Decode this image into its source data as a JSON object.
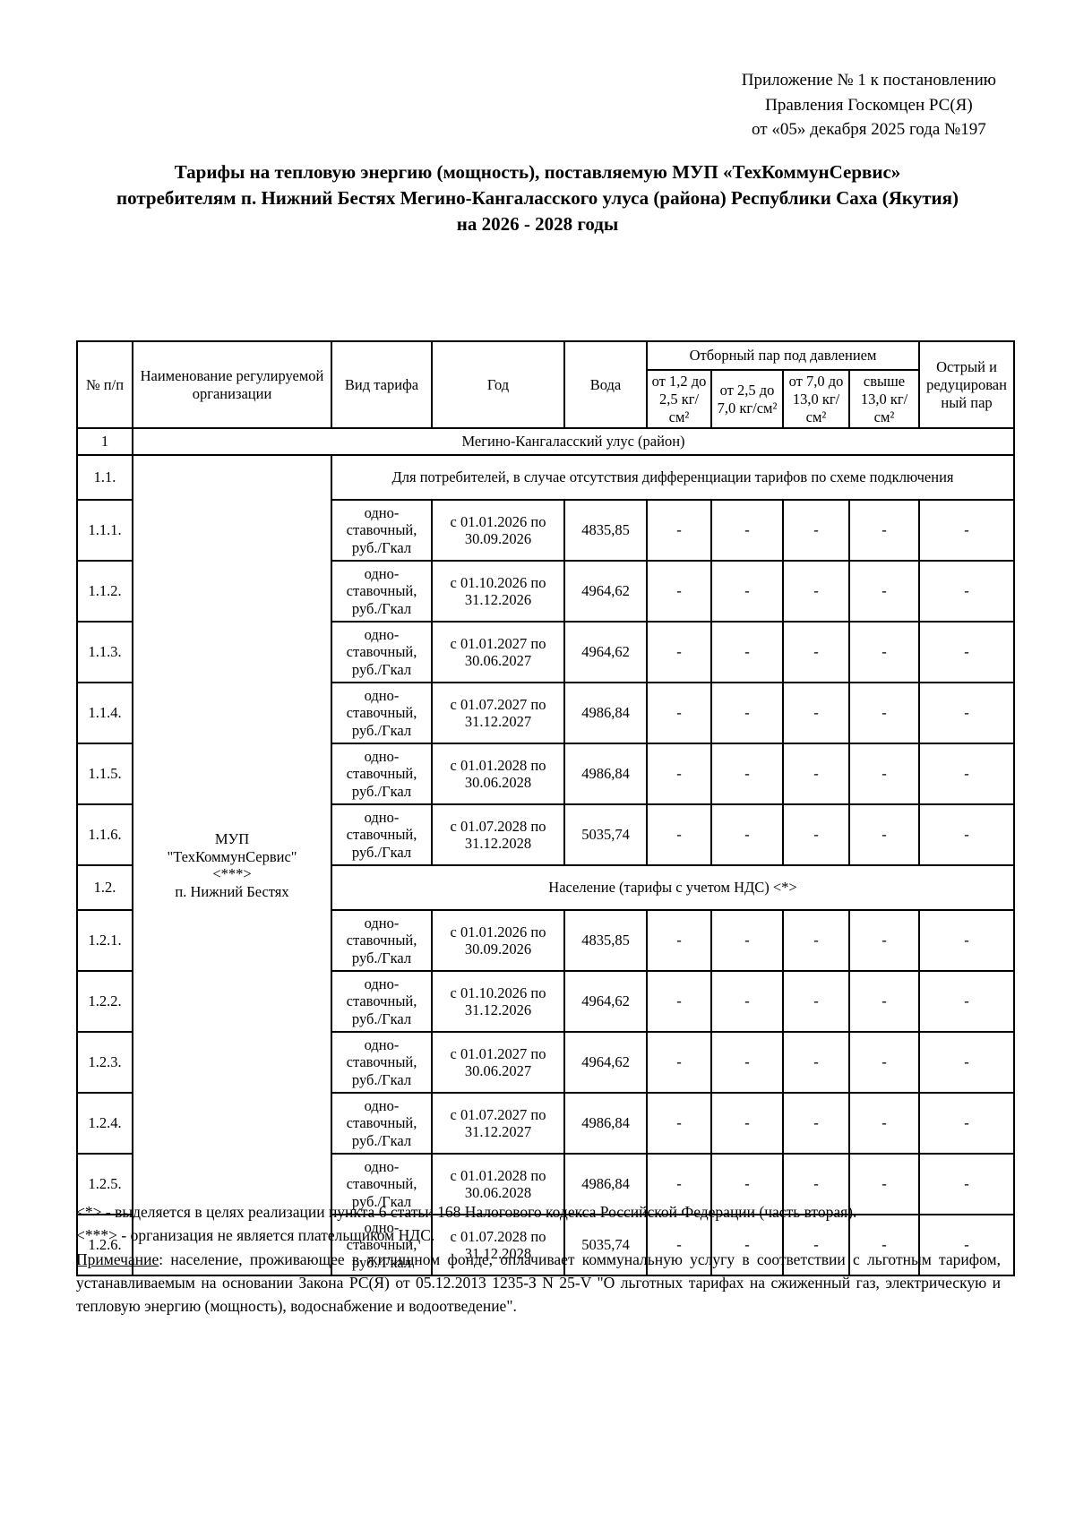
{
  "doc_ref": "Приложение № 1 к постановлению\nПравления Госкомцен РС(Я)\nот «05» декабря 2025 года №197",
  "title": "Тарифы на тепловую энергию (мощность), поставляемую МУП «ТехКоммунСервис» потребителям п. Нижний Бестях Мегино-Кангаласского улуса (района) Республики Саха (Якутия) на 2026 - 2028 годы",
  "table": {
    "headers": {
      "num": "№ п/п",
      "org": "Наименование регулируемой организации",
      "tariff_type": "Вид тарифа",
      "year": "Год",
      "water": "Вода",
      "steam_group": "Отборный пар под давлением",
      "steam_cols": [
        "от 1,2 до 2,5 кг/см²",
        "от 2,5 до 7,0 кг/см²",
        "от 7,0 до 13,0 кг/см²",
        "свыше 13,0 кг/см²"
      ],
      "sharp_steam": "Острый и редуцированный пар"
    },
    "district_row": {
      "num": "1",
      "label": "Мегино-Кангаласский улус (район)"
    },
    "organization": "МУП\n\"ТехКоммунСервис\"\n<***>\nп. Нижний Бестях",
    "sections": [
      {
        "num": "1.1.",
        "label": "Для потребителей,  в случае отсутствия дифференциации тарифов по схеме подключения",
        "rows": [
          {
            "num": "1.1.1.",
            "tariff": "одно-ставочный, руб./Гкал",
            "period": "с 01.01.2026 по 30.09.2026",
            "water": "4835,85",
            "steam": [
              "-",
              "-",
              "-",
              "-"
            ],
            "sharp": "-"
          },
          {
            "num": "1.1.2.",
            "tariff": "одно-ставочный, руб./Гкал",
            "period": "с 01.10.2026 по 31.12.2026",
            "water": "4964,62",
            "steam": [
              "-",
              "-",
              "-",
              "-"
            ],
            "sharp": "-"
          },
          {
            "num": "1.1.3.",
            "tariff": "одно-ставочный, руб./Гкал",
            "period": "с 01.01.2027 по 30.06.2027",
            "water": "4964,62",
            "steam": [
              "-",
              "-",
              "-",
              "-"
            ],
            "sharp": "-"
          },
          {
            "num": "1.1.4.",
            "tariff": "одно-ставочный, руб./Гкал",
            "period": "с 01.07.2027 по 31.12.2027",
            "water": "4986,84",
            "steam": [
              "-",
              "-",
              "-",
              "-"
            ],
            "sharp": "-"
          },
          {
            "num": "1.1.5.",
            "tariff": "одно-ставочный, руб./Гкал",
            "period": "с 01.01.2028 по 30.06.2028",
            "water": "4986,84",
            "steam": [
              "-",
              "-",
              "-",
              "-"
            ],
            "sharp": "-"
          },
          {
            "num": "1.1.6.",
            "tariff": "одно-ставочный, руб./Гкал",
            "period": "с 01.07.2028 по 31.12.2028",
            "water": "5035,74",
            "steam": [
              "-",
              "-",
              "-",
              "-"
            ],
            "sharp": "-"
          }
        ]
      },
      {
        "num": "1.2.",
        "label": "Население (тарифы с учетом НДС) <*>",
        "rows": [
          {
            "num": "1.2.1.",
            "tariff": "одно-ставочный, руб./Гкал",
            "period": "с 01.01.2026 по 30.09.2026",
            "water": "4835,85",
            "steam": [
              "-",
              "-",
              "-",
              "-"
            ],
            "sharp": "-"
          },
          {
            "num": "1.2.2.",
            "tariff": "одно-ставочный, руб./Гкал",
            "period": "с 01.10.2026 по 31.12.2026",
            "water": "4964,62",
            "steam": [
              "-",
              "-",
              "-",
              "-"
            ],
            "sharp": "-"
          },
          {
            "num": "1.2.3.",
            "tariff": "одно-ставочный, руб./Гкал",
            "period": "с 01.01.2027 по 30.06.2027",
            "water": "4964,62",
            "steam": [
              "-",
              "-",
              "-",
              "-"
            ],
            "sharp": "-"
          },
          {
            "num": "1.2.4.",
            "tariff": "одно-ставочный, руб./Гкал",
            "period": "с 01.07.2027 по 31.12.2027",
            "water": "4986,84",
            "steam": [
              "-",
              "-",
              "-",
              "-"
            ],
            "sharp": "-"
          },
          {
            "num": "1.2.5.",
            "tariff": "одно-ставочный, руб./Гкал",
            "period": "с 01.01.2028 по 30.06.2028",
            "water": "4986,84",
            "steam": [
              "-",
              "-",
              "-",
              "-"
            ],
            "sharp": "-"
          },
          {
            "num": "1.2.6.",
            "tariff": "одно-ставочный, руб./Гкал",
            "period": "с 01.07.2028 по 31.12.2028",
            "water": "5035,74",
            "steam": [
              "-",
              "-",
              "-",
              "-"
            ],
            "sharp": "-"
          }
        ]
      }
    ]
  },
  "notes": {
    "line1": "<*> - выделяется в целях реализации пункта 6 статьи 168 Налогового кодекса Российской Федерации (часть вторая).",
    "line2": "<***> - организация не является плательщиком НДС.",
    "note_label": "Примечание",
    "note_body": ": население, проживающее в жилищном фонде, оплачивает коммунальную услугу в соответствии с льготным тарифом, устанавливаемым на основании Закона РС(Я) от 05.12.2013 1235-З N 25-V \"О льготных тарифах на сжиженный газ, электрическую и тепловую энергию (мощность), водоснабжение и водоотведение\"."
  }
}
